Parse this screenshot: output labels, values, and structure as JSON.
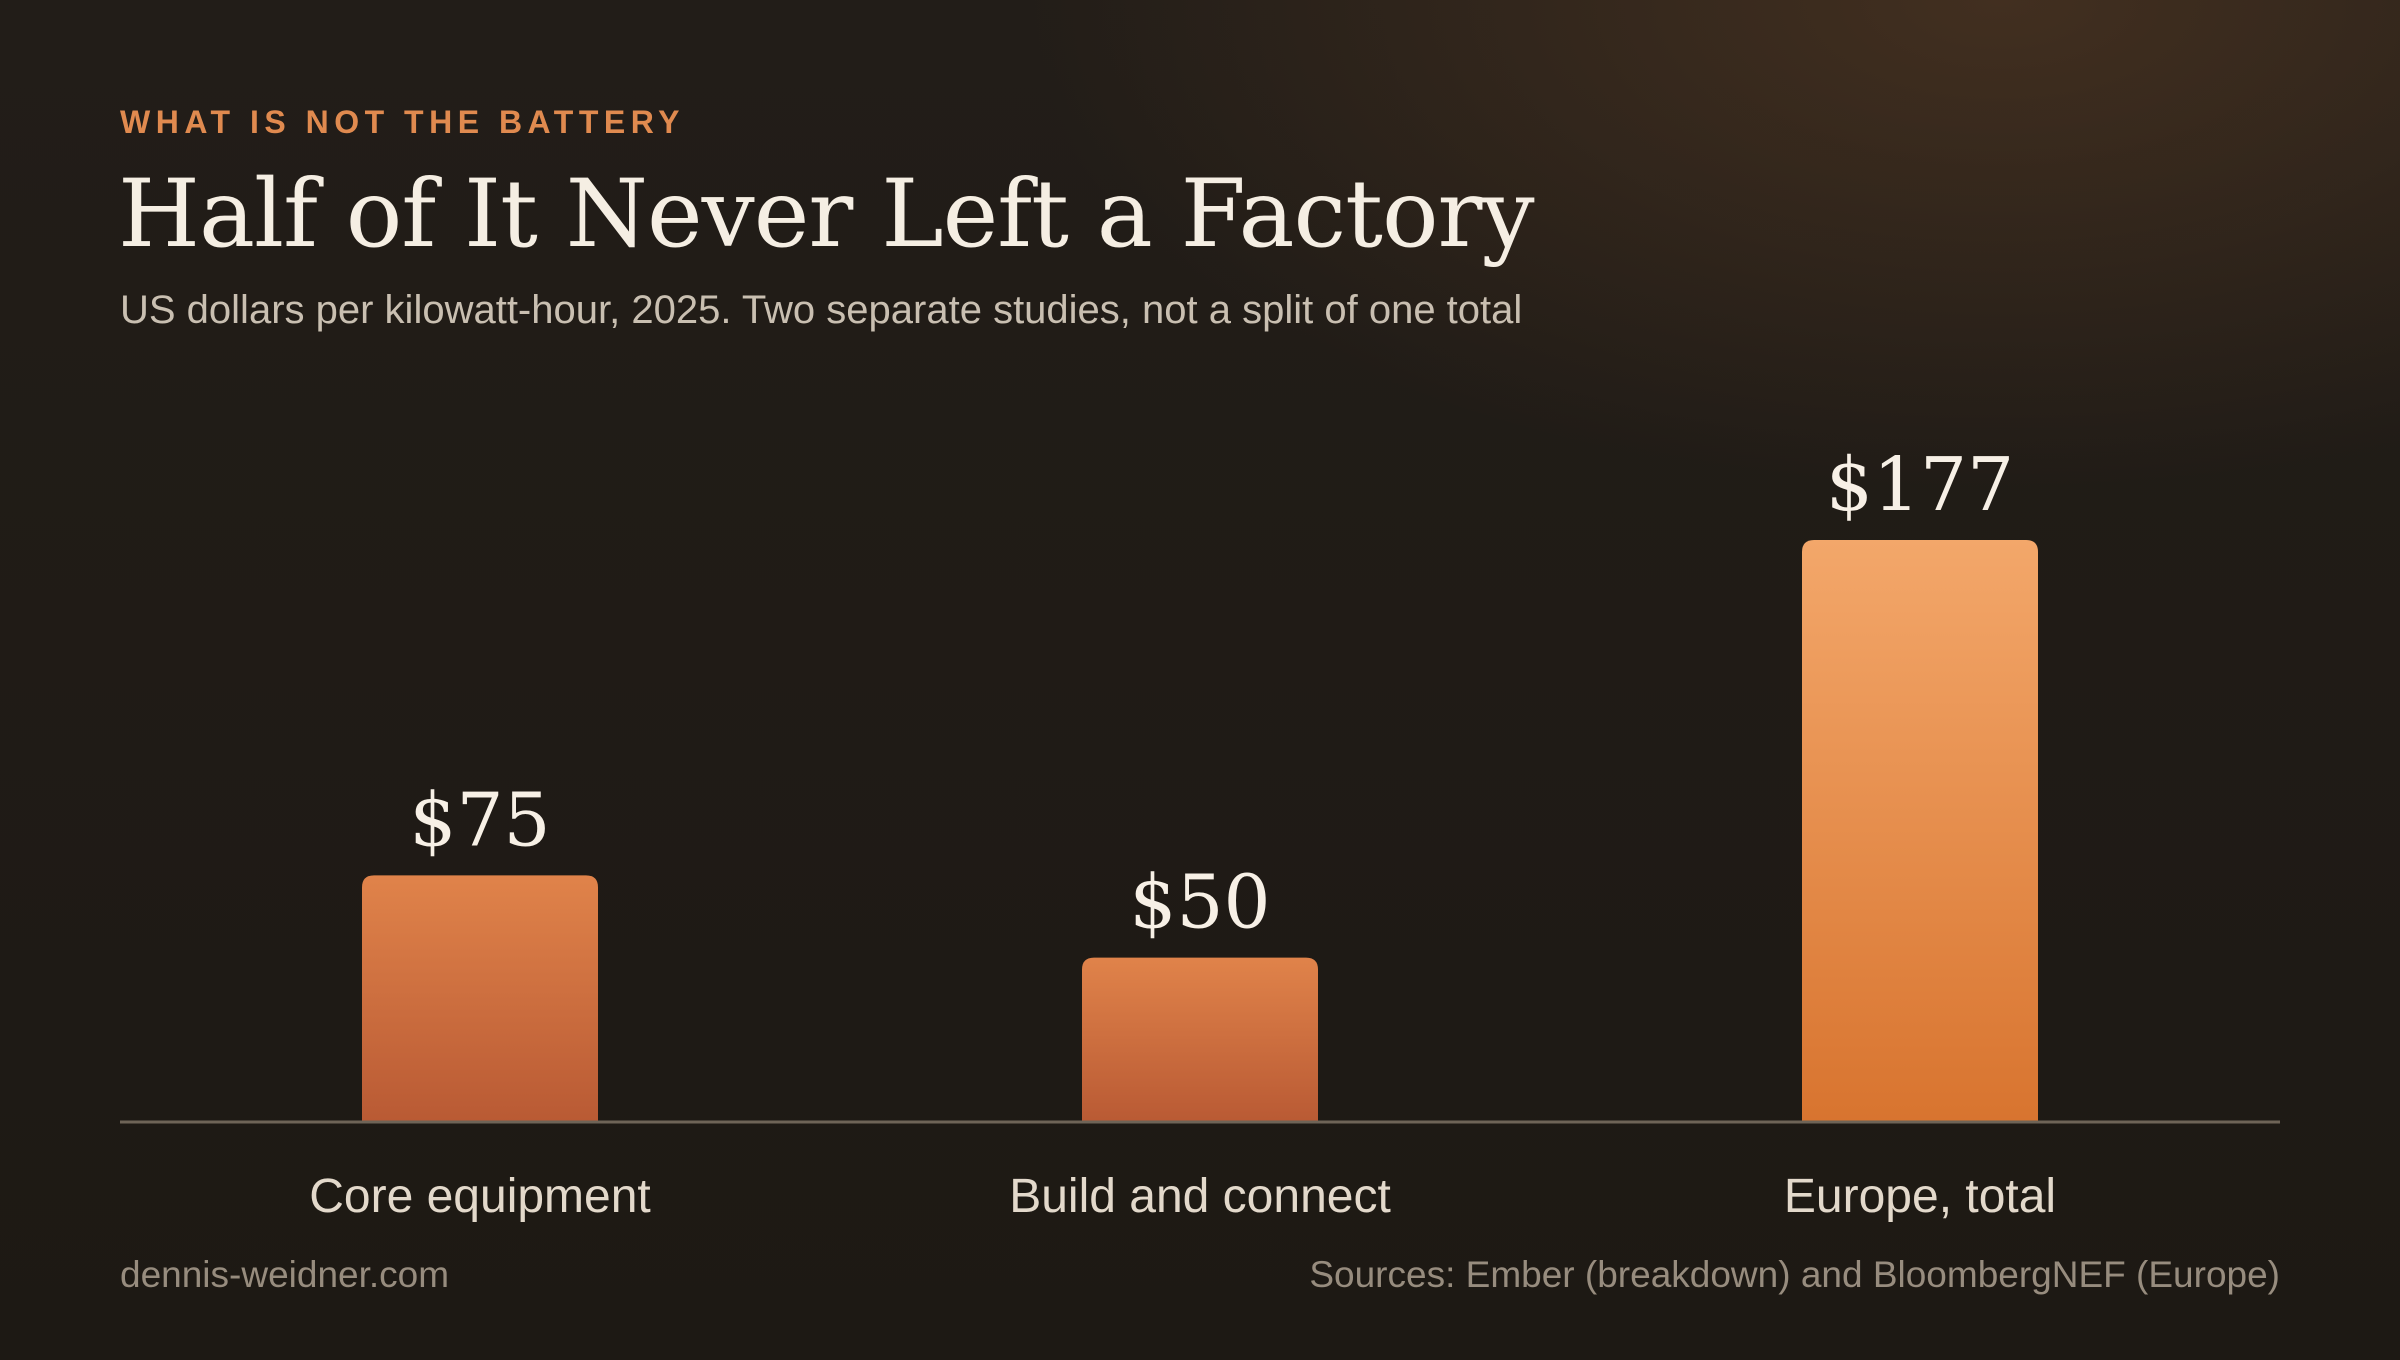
{
  "header": {
    "eyebrow": "WHAT IS NOT THE BATTERY",
    "title": "Half of It Never Left a Factory",
    "subtitle": "US dollars per kilowatt-hour, 2025. Two separate studies, not a split of one total"
  },
  "footer": {
    "site": "dennis-weidner.com",
    "sources": "Sources: Ember (breakdown) and BloombergNEF (Europe)"
  },
  "colors": {
    "accent": "#e08a4f",
    "bar_light": "#e0834a",
    "bar_dark": "#b95a34",
    "bar_highlight_light": "#f3a76a",
    "bar_highlight_dark": "#d8742f"
  },
  "chart_data": {
    "type": "bar",
    "title": "Half of It Never Left a Factory",
    "subtitle": "US dollars per kilowatt-hour, 2025. Two separate studies, not a split of one total",
    "categories": [
      "Core equipment",
      "Build and connect",
      "Europe, total"
    ],
    "values": [
      75,
      50,
      177
    ],
    "value_labels": [
      "$75",
      "$50",
      "$177"
    ],
    "highlight": [
      false,
      false,
      true
    ],
    "ylim": [
      0,
      177
    ],
    "grid": false,
    "legend": "none"
  }
}
